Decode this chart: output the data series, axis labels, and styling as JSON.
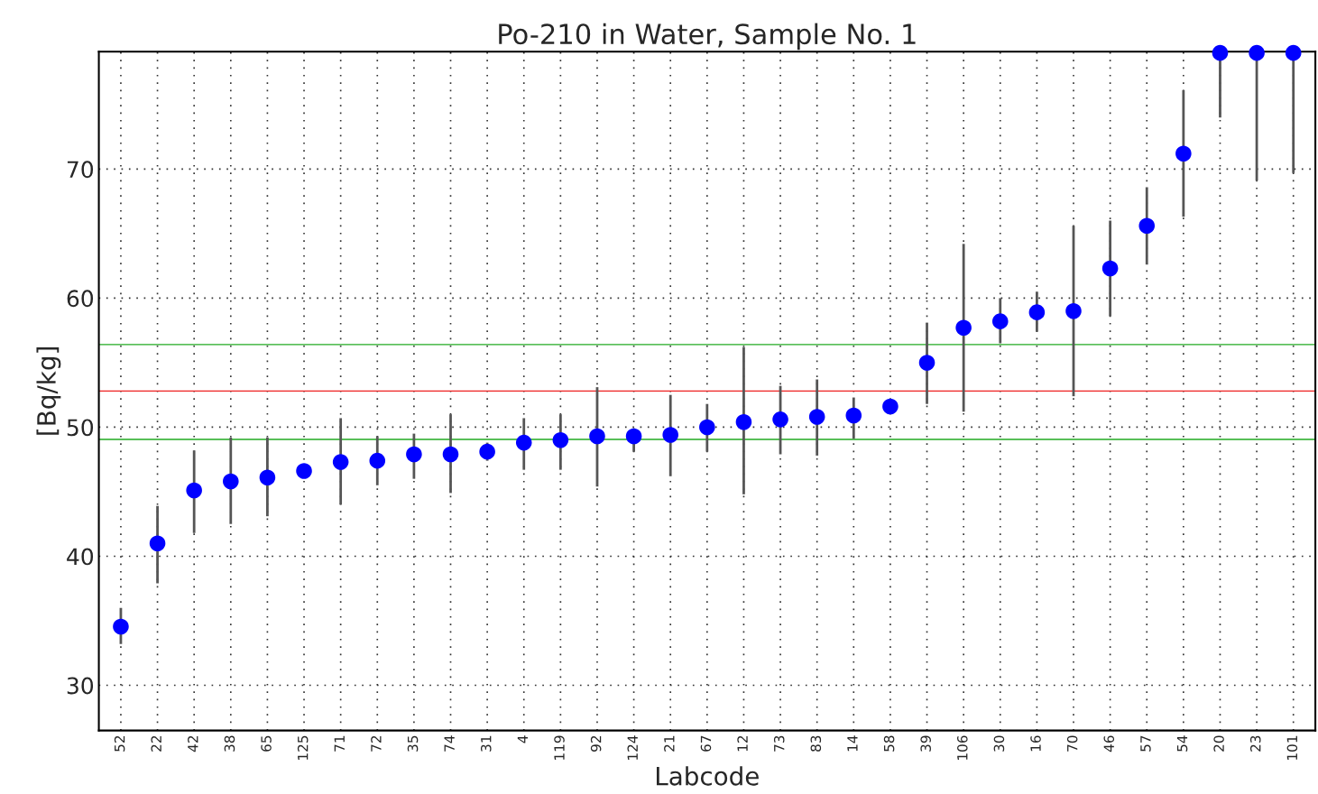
{
  "chart_data": {
    "type": "scatter",
    "title": "Po-210 in Water, Sample No. 1",
    "xlabel": "Labcode",
    "ylabel": "[Bq/kg]",
    "categories": [
      "52",
      "22",
      "42",
      "38",
      "65",
      "125",
      "71",
      "72",
      "35",
      "74",
      "31",
      "4",
      "119",
      "92",
      "124",
      "21",
      "67",
      "12",
      "73",
      "83",
      "14",
      "58",
      "39",
      "106",
      "30",
      "16",
      "70",
      "46",
      "57",
      "54",
      "20",
      "23",
      "101"
    ],
    "series": [
      {
        "color": "#0000ff",
        "values": [
          34.55,
          41.0,
          45.1,
          45.8,
          46.1,
          46.6,
          47.3,
          47.4,
          47.9,
          47.9,
          48.1,
          48.8,
          49.0,
          49.3,
          49.3,
          49.4,
          50.0,
          50.4,
          50.6,
          50.8,
          50.9,
          51.6,
          55.0,
          57.7,
          58.2,
          58.9,
          59.0,
          62.3,
          65.6,
          71.2,
          79.0,
          79.0,
          79.0
        ],
        "errors": [
          [
            33.2,
            36.0
          ],
          [
            37.9,
            43.9
          ],
          [
            41.8,
            48.2
          ],
          [
            42.5,
            49.2
          ],
          [
            43.1,
            49.2
          ],
          null,
          [
            44.0,
            50.7
          ],
          [
            45.5,
            49.3
          ],
          [
            46.0,
            49.5
          ],
          [
            44.9,
            51.0
          ],
          [
            47.4,
            48.8
          ],
          [
            46.7,
            50.7
          ],
          [
            46.7,
            51.0
          ],
          [
            45.4,
            53.1
          ],
          [
            48.1,
            49.8
          ],
          [
            46.2,
            52.5
          ],
          [
            48.1,
            51.8
          ],
          [
            44.8,
            56.2
          ],
          [
            47.9,
            53.2
          ],
          [
            47.8,
            53.7
          ],
          [
            49.1,
            52.3
          ],
          null,
          [
            51.8,
            58.1
          ],
          [
            51.2,
            64.2
          ],
          [
            56.5,
            60.0
          ],
          [
            57.4,
            60.5
          ],
          [
            52.4,
            65.6
          ],
          [
            58.6,
            66.0
          ],
          [
            62.6,
            68.6
          ],
          [
            66.3,
            76.1
          ],
          [
            74.0,
            79.0
          ],
          [
            69.1,
            79.0
          ],
          [
            69.7,
            79.0
          ]
        ]
      }
    ],
    "ref_lines": [
      {
        "axis": "y",
        "value": 56.4,
        "color": "#22aa22"
      },
      {
        "axis": "y",
        "value": 52.8,
        "color": "#ee2222"
      },
      {
        "axis": "y",
        "value": 49.05,
        "color": "#22aa22"
      }
    ],
    "ylim": [
      26.5,
      79.1
    ],
    "yticks": [
      30,
      40,
      50,
      60,
      70
    ],
    "grid": true,
    "marker": "circle"
  }
}
